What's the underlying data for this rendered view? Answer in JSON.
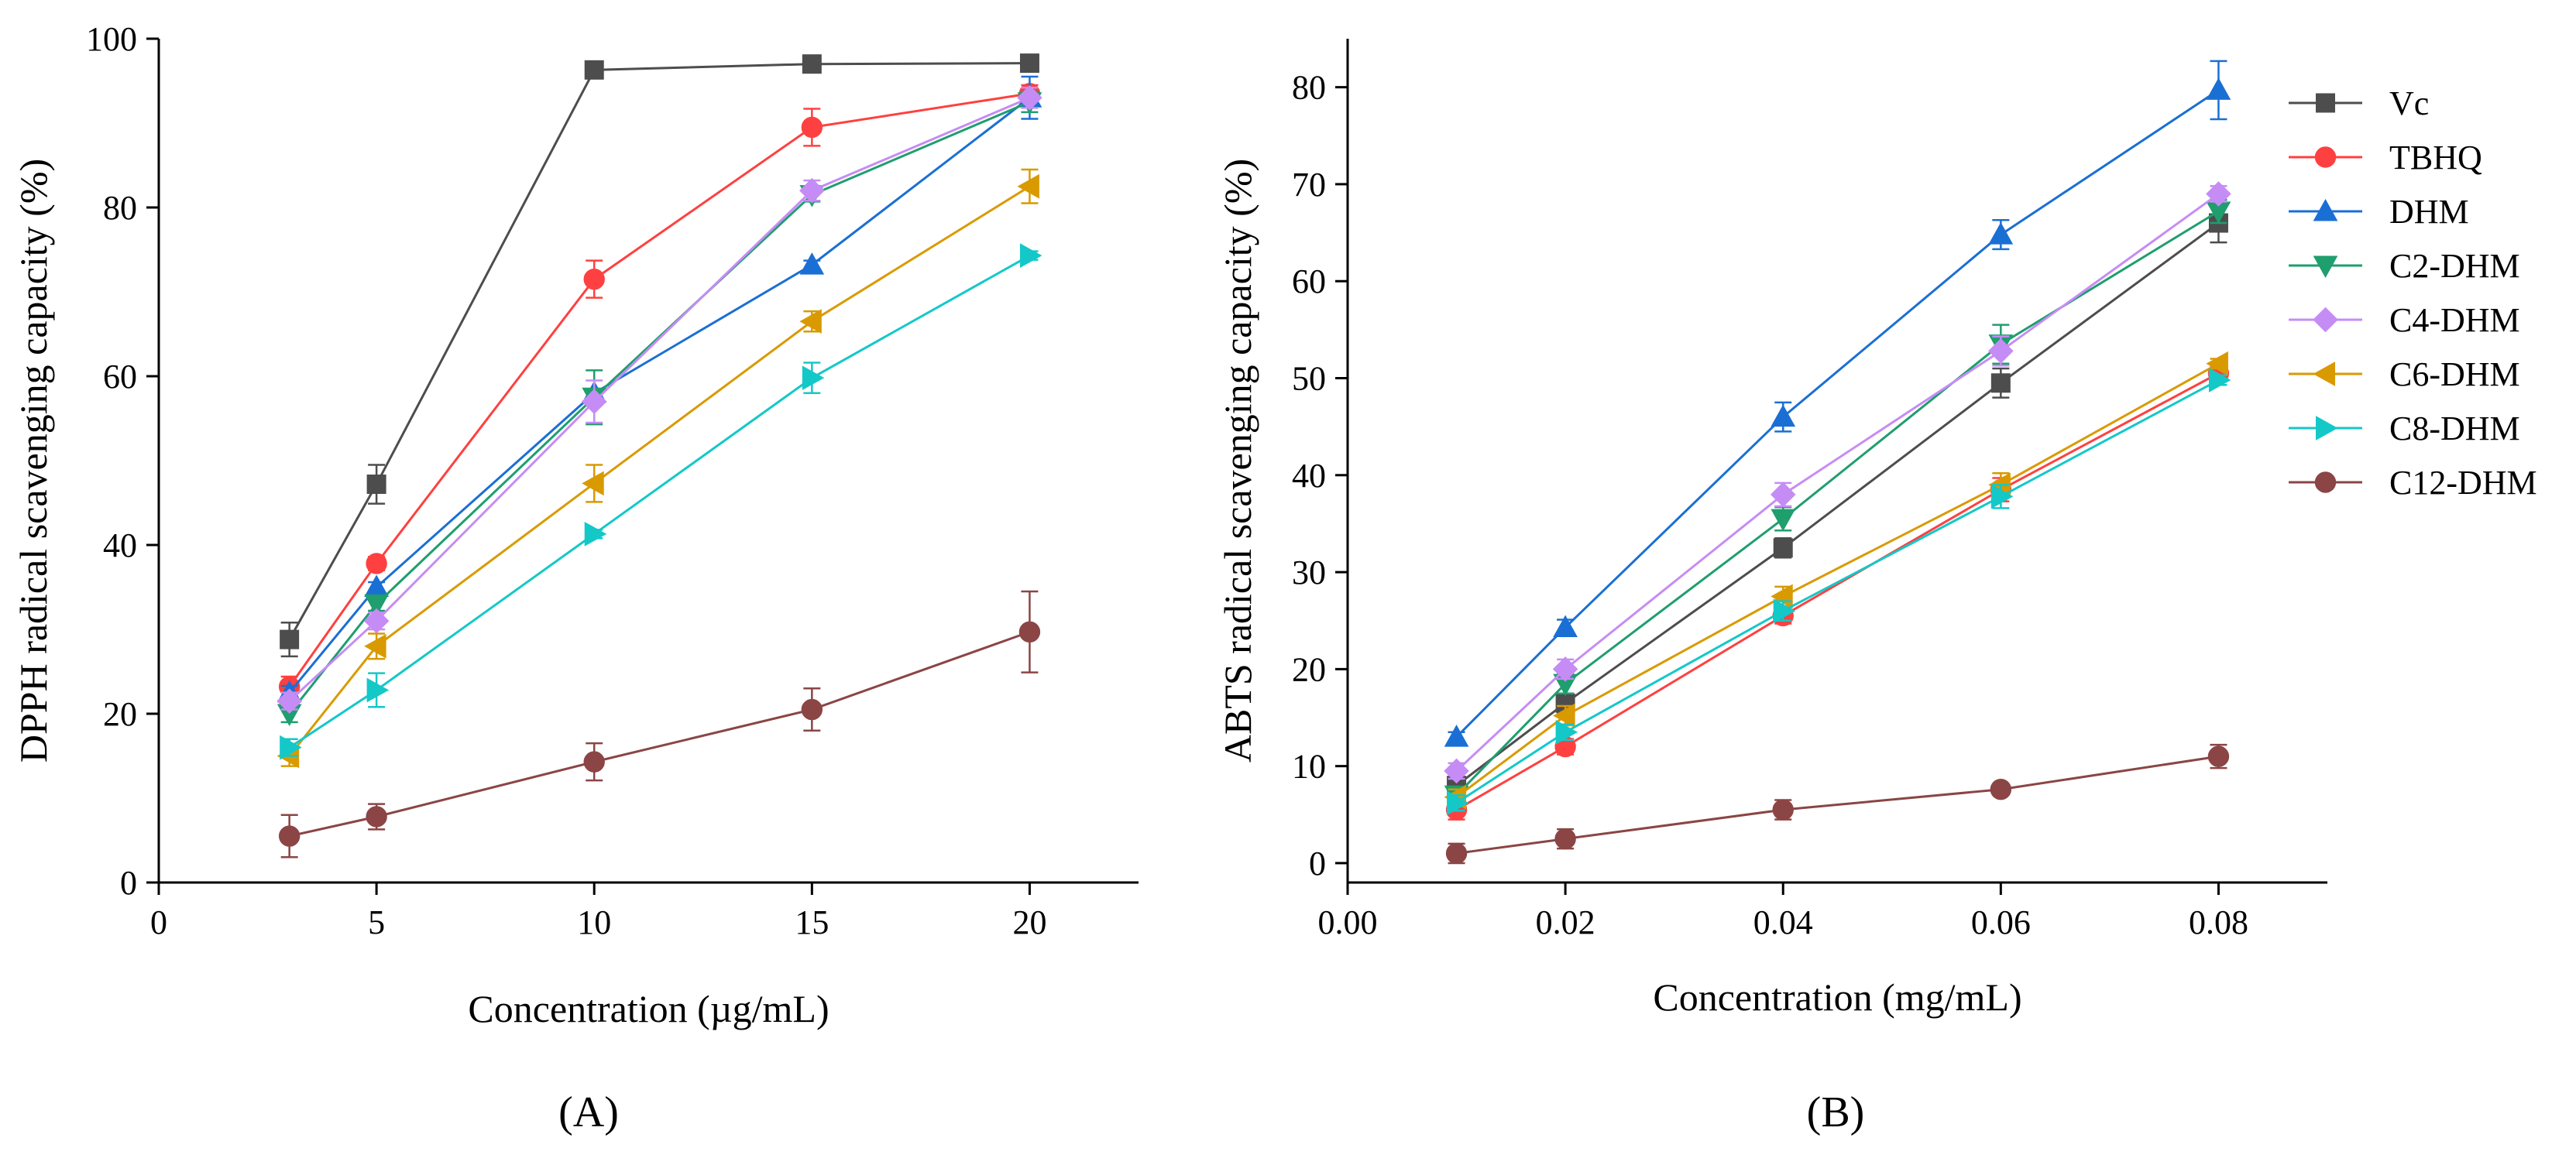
{
  "chart_data": [
    {
      "type": "line",
      "panel_label": "(A)",
      "xlabel": "Concentration (µg/mL)",
      "ylabel": "DPPH radical scavenging capacity (%)",
      "xlim": [
        0,
        22.5
      ],
      "ylim": [
        0,
        100
      ],
      "x_ticks": [
        0,
        5,
        10,
        15,
        20
      ],
      "y_ticks": [
        0,
        20,
        40,
        60,
        80,
        100
      ],
      "x_tick_labels": [
        "0",
        "5",
        "10",
        "15",
        "20"
      ],
      "y_tick_labels": [
        "0",
        "20",
        "40",
        "60",
        "80",
        "100"
      ],
      "x": [
        3,
        5,
        10,
        15,
        20
      ],
      "series": [
        {
          "name": "Vc",
          "color": "#4d4d4d",
          "marker": "square",
          "values": [
            28.8,
            47.2,
            96.3,
            97.0,
            97.1
          ],
          "errors": [
            2.0,
            2.3,
            0.6,
            0.5,
            0.5
          ]
        },
        {
          "name": "TBHQ",
          "color": "#ff4040",
          "marker": "circle",
          "values": [
            23.2,
            37.8,
            71.5,
            89.5,
            93.5
          ],
          "errors": [
            1.2,
            0.8,
            2.2,
            2.2,
            1.0
          ]
        },
        {
          "name": "DHM",
          "color": "#1a6fd4",
          "marker": "triangle-up",
          "values": [
            22.5,
            35.0,
            58.0,
            73.2,
            93.0
          ],
          "errors": [
            0.8,
            0.6,
            0.5,
            0.5,
            2.5
          ]
        },
        {
          "name": "C2-DHM",
          "color": "#1f9e6e",
          "marker": "triangle-down",
          "values": [
            20.0,
            33.0,
            57.5,
            81.5,
            92.5
          ],
          "errors": [
            1.0,
            0.8,
            3.2,
            0.8,
            1.2
          ]
        },
        {
          "name": "C4-DHM",
          "color": "#c68cf5",
          "marker": "diamond",
          "values": [
            21.5,
            31.0,
            57.0,
            82.0,
            93.0
          ],
          "errors": [
            1.0,
            1.0,
            2.5,
            1.2,
            1.2
          ]
        },
        {
          "name": "C6-DHM",
          "color": "#d99a00",
          "marker": "triangle-left",
          "values": [
            15.0,
            28.0,
            47.3,
            66.5,
            82.5
          ],
          "errors": [
            1.2,
            1.5,
            2.2,
            1.2,
            2.0
          ]
        },
        {
          "name": "C8-DHM",
          "color": "#14c8c8",
          "marker": "triangle-right",
          "values": [
            16.0,
            22.8,
            41.3,
            59.8,
            74.3
          ],
          "errors": [
            1.0,
            2.0,
            0.5,
            1.8,
            0.5
          ]
        },
        {
          "name": "C12-DHM",
          "color": "#8b4545",
          "marker": "circle",
          "values": [
            5.5,
            7.8,
            14.3,
            20.5,
            29.7
          ],
          "errors": [
            2.5,
            1.5,
            2.2,
            2.5,
            4.8
          ]
        }
      ]
    },
    {
      "type": "line",
      "panel_label": "(B)",
      "xlabel": "Concentration (mg/mL)",
      "ylabel": "ABTS radical scavenging capacity (%)",
      "xlim": [
        0,
        0.09
      ],
      "ylim": [
        -2,
        85
      ],
      "x_ticks": [
        0,
        0.02,
        0.04,
        0.06,
        0.08
      ],
      "y_ticks": [
        0,
        10,
        20,
        30,
        40,
        50,
        60,
        70,
        80
      ],
      "x_tick_labels": [
        "0.00",
        "0.02",
        "0.04",
        "0.06",
        "0.08"
      ],
      "y_tick_labels": [
        "0",
        "10",
        "20",
        "30",
        "40",
        "50",
        "60",
        "70",
        "80"
      ],
      "x": [
        0.01,
        0.02,
        0.04,
        0.06,
        0.08
      ],
      "legend_position": "top-right",
      "series": [
        {
          "name": "Vc",
          "color": "#4d4d4d",
          "marker": "square",
          "values": [
            8.0,
            16.5,
            32.5,
            49.5,
            66.0
          ],
          "errors": [
            0.5,
            1.0,
            1.0,
            1.5,
            2.0
          ]
        },
        {
          "name": "TBHQ",
          "color": "#ff4040",
          "marker": "circle",
          "values": [
            5.5,
            12.0,
            25.5,
            38.5,
            50.5
          ],
          "errors": [
            1.0,
            0.8,
            0.8,
            1.2,
            0.8
          ]
        },
        {
          "name": "DHM",
          "color": "#1a6fd4",
          "marker": "triangle-up",
          "values": [
            13.0,
            24.3,
            46.0,
            64.8,
            79.7
          ],
          "errors": [
            0.5,
            0.8,
            1.5,
            1.5,
            3.0
          ]
        },
        {
          "name": "C2-DHM",
          "color": "#1f9e6e",
          "marker": "triangle-down",
          "values": [
            7.0,
            18.5,
            35.5,
            53.5,
            67.2
          ],
          "errors": [
            0.8,
            1.0,
            1.2,
            2.0,
            1.2
          ]
        },
        {
          "name": "C4-DHM",
          "color": "#c68cf5",
          "marker": "diamond",
          "values": [
            9.5,
            20.0,
            38.0,
            52.8,
            69.0
          ],
          "errors": [
            0.8,
            1.0,
            1.2,
            1.5,
            0.8
          ]
        },
        {
          "name": "C6-DHM",
          "color": "#d99a00",
          "marker": "triangle-left",
          "values": [
            6.8,
            15.2,
            27.5,
            39.0,
            51.5
          ],
          "errors": [
            0.8,
            1.0,
            1.0,
            1.2,
            0.5
          ]
        },
        {
          "name": "C8-DHM",
          "color": "#14c8c8",
          "marker": "triangle-right",
          "values": [
            6.2,
            13.5,
            26.0,
            37.8,
            49.8
          ],
          "errors": [
            0.8,
            0.8,
            1.0,
            1.2,
            0.5
          ]
        },
        {
          "name": "C12-DHM",
          "color": "#8b4545",
          "marker": "circle",
          "values": [
            1.0,
            2.5,
            5.5,
            7.6,
            11.0
          ],
          "errors": [
            1.0,
            1.0,
            1.0,
            0.5,
            1.2
          ]
        }
      ]
    }
  ]
}
